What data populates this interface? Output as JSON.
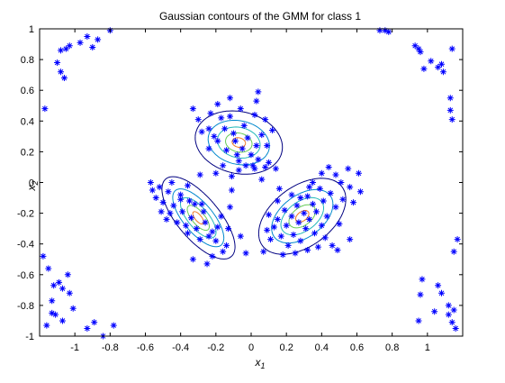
{
  "chart_data": {
    "type": "scatter",
    "title": "Gaussian contours of the GMM for class 1",
    "xlabel": "x1",
    "ylabel": "x2",
    "xlim": [
      -1.2,
      1.2
    ],
    "ylim": [
      -1,
      1
    ],
    "xticks": [
      -1,
      -0.8,
      -0.6,
      -0.4,
      -0.2,
      0,
      0.2,
      0.4,
      0.6,
      0.8,
      1
    ],
    "yticks": [
      -1,
      -0.8,
      -0.6,
      -0.4,
      -0.2,
      0,
      0.2,
      0.4,
      0.6,
      0.8,
      1
    ],
    "x_tick_labels": [
      "-1",
      "-0.8",
      "-0.6",
      "-0.4",
      "-0.2",
      "0",
      "0.2",
      "0.4",
      "0.6",
      "0.8",
      "1"
    ],
    "y_tick_labels": [
      "-1",
      "-0.8",
      "-0.6",
      "-0.4",
      "-0.2",
      "0",
      "0.2",
      "0.4",
      "0.6",
      "0.8",
      "1"
    ],
    "grid": false,
    "legend": "none",
    "marker": "asterisk",
    "marker_color": "#0000ff",
    "contour_colors": [
      "#000080",
      "#0088cc",
      "#22b8b8",
      "#66cc55",
      "#ee7722"
    ],
    "components": [
      {
        "mean": [
          -0.07,
          0.26
        ],
        "sx": 0.12,
        "sy": 0.1,
        "rho": -0.15
      },
      {
        "mean": [
          -0.3,
          -0.23
        ],
        "sx": 0.1,
        "sy": 0.13,
        "rho": -0.7
      },
      {
        "mean": [
          0.29,
          -0.22
        ],
        "sx": 0.12,
        "sy": 0.12,
        "rho": 0.45
      }
    ],
    "contour_levels": [
      0.12,
      0.35,
      0.6,
      0.82,
      0.95
    ],
    "points": [
      [
        -1.17,
        0.48
      ],
      [
        -1.1,
        0.78
      ],
      [
        -1.08,
        0.72
      ],
      [
        -1.06,
        0.68
      ],
      [
        -1.08,
        0.86
      ],
      [
        -1.05,
        0.87
      ],
      [
        -1.03,
        0.89
      ],
      [
        -0.97,
        0.91
      ],
      [
        -0.93,
        0.95
      ],
      [
        -0.9,
        0.88
      ],
      [
        -0.87,
        0.93
      ],
      [
        -0.8,
        0.99
      ],
      [
        0.73,
        0.99
      ],
      [
        0.76,
        0.99
      ],
      [
        0.78,
        0.98
      ],
      [
        0.93,
        0.89
      ],
      [
        0.95,
        0.87
      ],
      [
        0.96,
        0.85
      ],
      [
        0.98,
        0.74
      ],
      [
        1.02,
        0.79
      ],
      [
        1.06,
        0.75
      ],
      [
        1.08,
        0.77
      ],
      [
        1.14,
        0.87
      ],
      [
        1.09,
        0.72
      ],
      [
        1.13,
        0.55
      ],
      [
        1.13,
        0.47
      ],
      [
        1.14,
        0.41
      ],
      [
        -1.18,
        -0.48
      ],
      [
        -1.15,
        -0.56
      ],
      [
        -1.13,
        -0.77
      ],
      [
        -1.12,
        -0.67
      ],
      [
        -1.09,
        -0.65
      ],
      [
        -1.07,
        -0.69
      ],
      [
        -1.04,
        -0.6
      ],
      [
        -1.03,
        -0.72
      ],
      [
        -1.01,
        -0.82
      ],
      [
        -1.13,
        -0.85
      ],
      [
        -1.16,
        -0.93
      ],
      [
        -1.11,
        -0.86
      ],
      [
        -1.07,
        -0.9
      ],
      [
        -0.93,
        -0.95
      ],
      [
        -0.89,
        -0.91
      ],
      [
        -0.84,
        -1.0
      ],
      [
        -0.78,
        -0.93
      ],
      [
        0.95,
        -0.9
      ],
      [
        0.96,
        -0.73
      ],
      [
        0.97,
        -0.63
      ],
      [
        1.06,
        -0.67
      ],
      [
        1.08,
        -0.72
      ],
      [
        1.12,
        -0.86
      ],
      [
        1.15,
        -0.83
      ],
      [
        1.14,
        -0.91
      ],
      [
        1.16,
        -0.95
      ],
      [
        1.15,
        -0.45
      ],
      [
        1.17,
        -0.37
      ],
      [
        1.12,
        -0.8
      ],
      [
        1.04,
        -0.84
      ],
      [
        -0.33,
        0.48
      ],
      [
        -0.3,
        0.41
      ],
      [
        -0.28,
        0.33
      ],
      [
        -0.24,
        0.35
      ],
      [
        -0.21,
        0.3
      ],
      [
        -0.19,
        0.27
      ],
      [
        -0.17,
        0.42
      ],
      [
        -0.15,
        0.35
      ],
      [
        -0.14,
        0.21
      ],
      [
        -0.12,
        0.43
      ],
      [
        -0.1,
        0.32
      ],
      [
        -0.09,
        0.27
      ],
      [
        -0.08,
        0.18
      ],
      [
        -0.07,
        0.14
      ],
      [
        -0.05,
        0.22
      ],
      [
        -0.04,
        0.37
      ],
      [
        -0.02,
        0.29
      ],
      [
        0.0,
        0.18
      ],
      [
        0.01,
        0.11
      ],
      [
        0.03,
        0.24
      ],
      [
        0.04,
        0.15
      ],
      [
        0.06,
        0.31
      ],
      [
        0.08,
        0.41
      ],
      [
        0.09,
        0.24
      ],
      [
        0.1,
        0.13
      ],
      [
        0.12,
        0.34
      ],
      [
        0.14,
        0.09
      ],
      [
        0.02,
        0.44
      ],
      [
        -0.19,
        0.51
      ],
      [
        -0.12,
        0.55
      ],
      [
        0.03,
        0.53
      ],
      [
        0.04,
        0.59
      ],
      [
        -0.2,
        0.06
      ],
      [
        -0.16,
        0.11
      ],
      [
        -0.11,
        0.04
      ],
      [
        -0.07,
        0.08
      ],
      [
        -0.03,
        0.11
      ],
      [
        0.02,
        0.09
      ],
      [
        0.06,
        0.02
      ],
      [
        -0.24,
        0.22
      ],
      [
        -0.29,
        0.05
      ],
      [
        0.08,
        0.1
      ],
      [
        -0.23,
        0.45
      ],
      [
        -0.06,
        0.48
      ],
      [
        -0.57,
        0.0
      ],
      [
        -0.56,
        -0.05
      ],
      [
        -0.54,
        -0.1
      ],
      [
        -0.52,
        -0.03
      ],
      [
        -0.5,
        -0.13
      ],
      [
        -0.47,
        -0.06
      ],
      [
        -0.46,
        -0.2
      ],
      [
        -0.44,
        -0.15
      ],
      [
        -0.42,
        -0.26
      ],
      [
        -0.4,
        -0.11
      ],
      [
        -0.39,
        -0.19
      ],
      [
        -0.37,
        -0.28
      ],
      [
        -0.36,
        -0.33
      ],
      [
        -0.34,
        -0.23
      ],
      [
        -0.32,
        -0.14
      ],
      [
        -0.31,
        -0.3
      ],
      [
        -0.29,
        -0.37
      ],
      [
        -0.27,
        -0.19
      ],
      [
        -0.26,
        -0.26
      ],
      [
        -0.24,
        -0.35
      ],
      [
        -0.22,
        -0.32
      ],
      [
        -0.2,
        -0.38
      ],
      [
        -0.19,
        -0.29
      ],
      [
        -0.17,
        -0.22
      ],
      [
        -0.16,
        -0.45
      ],
      [
        -0.14,
        -0.41
      ],
      [
        -0.13,
        -0.3
      ],
      [
        -0.12,
        -0.16
      ],
      [
        -0.11,
        -0.05
      ],
      [
        -0.4,
        -0.08
      ],
      [
        -0.36,
        -0.02
      ],
      [
        -0.51,
        -0.19
      ],
      [
        -0.48,
        -0.24
      ],
      [
        -0.33,
        -0.5
      ],
      [
        -0.25,
        -0.53
      ],
      [
        -0.22,
        -0.48
      ],
      [
        -0.45,
        0.0
      ],
      [
        -0.35,
        -0.12
      ],
      [
        -0.28,
        -0.14
      ],
      [
        -0.06,
        -0.35
      ],
      [
        -0.03,
        -0.46
      ],
      [
        0.07,
        -0.45
      ],
      [
        0.11,
        -0.37
      ],
      [
        0.13,
        -0.29
      ],
      [
        0.15,
        -0.24
      ],
      [
        0.17,
        -0.35
      ],
      [
        0.19,
        -0.18
      ],
      [
        0.2,
        -0.28
      ],
      [
        0.21,
        -0.41
      ],
      [
        0.23,
        -0.22
      ],
      [
        0.24,
        -0.34
      ],
      [
        0.26,
        -0.15
      ],
      [
        0.27,
        -0.26
      ],
      [
        0.28,
        -0.38
      ],
      [
        0.3,
        -0.2
      ],
      [
        0.31,
        -0.3
      ],
      [
        0.32,
        -0.09
      ],
      [
        0.33,
        -0.24
      ],
      [
        0.35,
        -0.14
      ],
      [
        0.36,
        -0.33
      ],
      [
        0.37,
        -0.19
      ],
      [
        0.39,
        -0.04
      ],
      [
        0.4,
        -0.28
      ],
      [
        0.41,
        -0.12
      ],
      [
        0.43,
        -0.22
      ],
      [
        0.45,
        -0.07
      ],
      [
        0.46,
        -0.41
      ],
      [
        0.48,
        -0.16
      ],
      [
        0.5,
        -0.27
      ],
      [
        0.52,
        -0.11
      ],
      [
        0.33,
        -0.03
      ],
      [
        0.44,
        0.1
      ],
      [
        0.4,
        0.06
      ],
      [
        0.35,
        0.0
      ],
      [
        0.48,
        0.05
      ],
      [
        0.56,
        -0.03
      ],
      [
        0.58,
        -0.13
      ],
      [
        0.55,
        0.09
      ],
      [
        0.18,
        -0.47
      ],
      [
        0.25,
        -0.46
      ],
      [
        0.32,
        -0.44
      ],
      [
        0.1,
        -0.21
      ],
      [
        0.15,
        -0.12
      ],
      [
        0.23,
        -0.08
      ],
      [
        0.28,
        -0.1
      ],
      [
        0.42,
        -0.36
      ],
      [
        0.09,
        -0.31
      ],
      [
        0.62,
        -0.06
      ],
      [
        0.56,
        -0.37
      ],
      [
        0.49,
        -0.44
      ],
      [
        0.38,
        -0.42
      ],
      [
        0.16,
        -0.04
      ],
      [
        0.61,
        0.06
      ],
      [
        0.51,
        0.0
      ]
    ]
  }
}
